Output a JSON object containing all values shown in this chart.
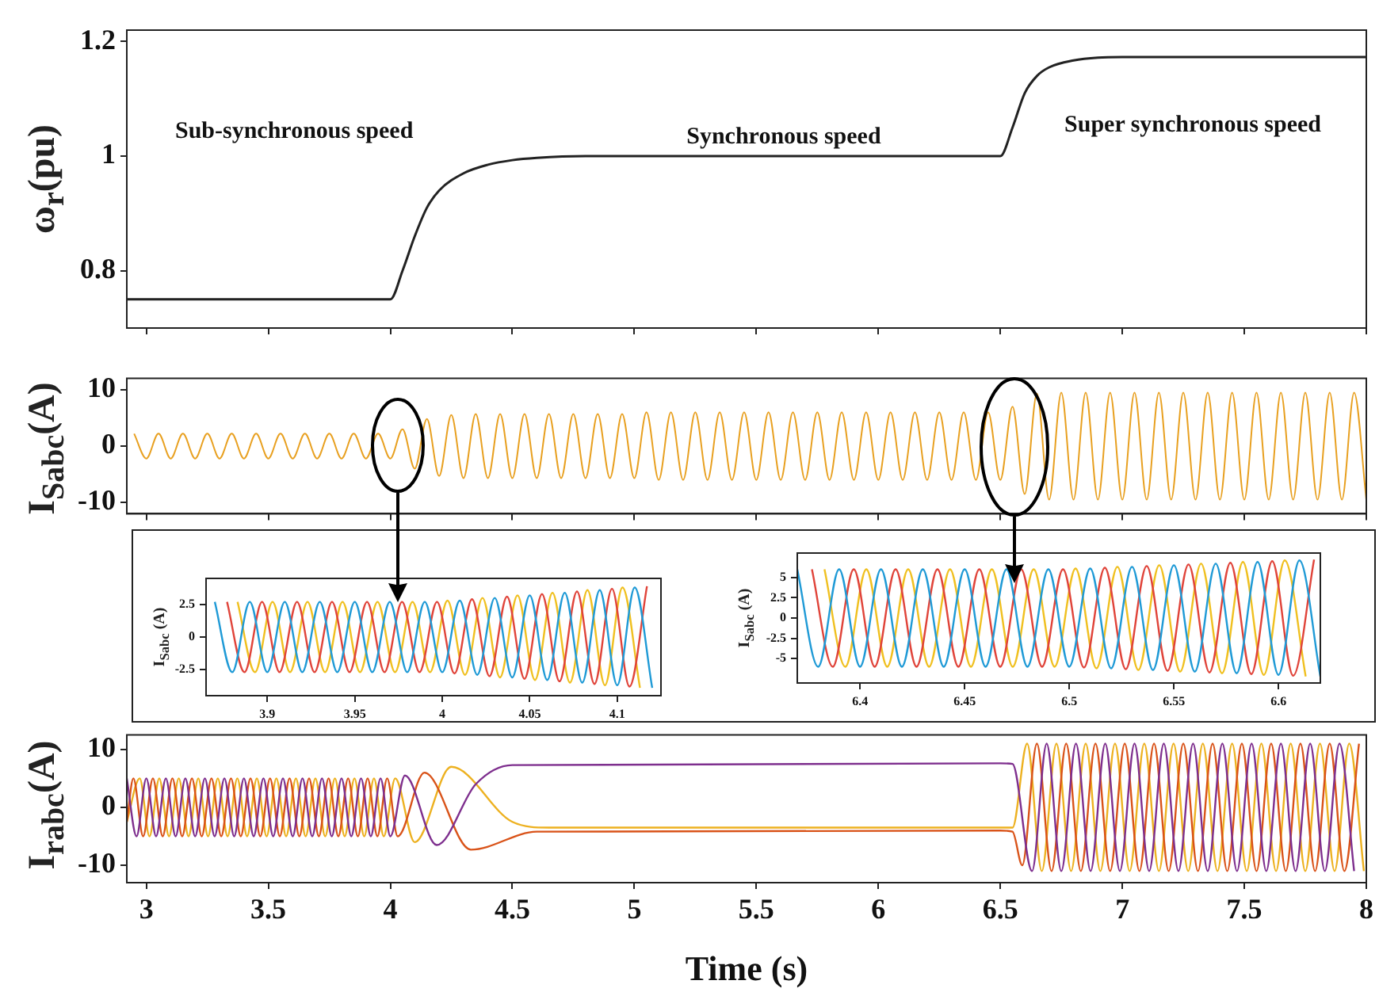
{
  "chart_data": [
    {
      "type": "line",
      "ylabel": "ω$_{r}$(pu)",
      "xlim": [
        2.92,
        8
      ],
      "xticks": [
        3,
        3.5,
        4,
        4.5,
        5,
        5.5,
        6,
        6.5,
        7,
        7.5,
        8
      ],
      "ylim": [
        0.7,
        1.22
      ],
      "yticks": [
        0.8,
        1,
        1.2
      ],
      "tick_labels": "y",
      "marker": "none",
      "annotations": [
        "Sub-synchronous speed",
        "Synchronous speed",
        "Super synchronous speed"
      ],
      "series": [
        {
          "color": "#222222",
          "x": [
            2.92,
            4.0,
            4.05,
            4.1,
            4.15,
            4.2,
            4.3,
            4.4,
            4.5,
            4.6,
            4.8,
            6.5,
            6.55,
            6.6,
            6.65,
            6.7,
            6.8,
            6.9,
            7.0,
            8.0
          ],
          "values": [
            0.75,
            0.75,
            0.8,
            0.86,
            0.91,
            0.94,
            0.97,
            0.985,
            0.993,
            0.997,
            1.0,
            1.0,
            1.05,
            1.11,
            1.14,
            1.155,
            1.167,
            1.172,
            1.173,
            1.173
          ]
        }
      ]
    },
    {
      "type": "line",
      "ylabel": "I$_{Sabc}$(A)",
      "xlim": [
        2.92,
        8
      ],
      "xticks": [
        3,
        3.5,
        4,
        4.5,
        5,
        5.5,
        6,
        6.5,
        7,
        7.5,
        8
      ],
      "ylim": [
        -12,
        12
      ],
      "yticks": [
        -10,
        0,
        10
      ],
      "tick_labels": "y",
      "marker": "none",
      "series": [
        {
          "color": "#e8a020",
          "x": [
            2.95,
            3,
            3.05,
            3.1,
            3.15,
            3.2,
            3.25,
            3.3,
            3.35,
            3.4,
            3.45,
            3.5,
            3.55,
            3.6,
            3.65,
            3.7,
            3.75,
            3.8,
            3.85,
            3.9,
            3.95,
            4,
            4.05,
            4.1,
            4.15,
            4.2,
            4.25,
            4.3,
            4.35,
            4.4,
            4.45,
            4.5,
            4.55,
            4.6,
            4.65,
            4.7,
            4.75,
            4.8,
            4.85,
            4.9,
            4.95,
            5,
            5.05,
            5.1,
            5.15,
            5.2,
            5.25,
            5.3,
            5.35,
            5.4,
            5.45,
            5.5,
            5.55,
            5.6,
            5.65,
            5.7,
            5.75,
            5.8,
            5.85,
            5.9,
            5.95,
            6,
            6.05,
            6.1,
            6.15,
            6.2,
            6.25,
            6.3,
            6.35,
            6.4,
            6.45,
            6.5,
            6.55,
            6.6,
            6.65,
            6.7,
            6.75,
            6.8,
            6.85,
            6.9,
            6.95,
            7,
            7.05,
            7.1,
            7.15,
            7.2,
            7.25,
            7.3,
            7.35,
            7.4,
            7.45,
            7.5,
            7.55,
            7.6,
            7.65,
            7.7,
            7.75,
            7.8,
            7.85,
            7.9,
            7.95,
            8
          ],
          "values": [
            2.2,
            -2.2,
            2.2,
            -2.2,
            2.2,
            -2.2,
            2.2,
            -2.2,
            2.2,
            -2.2,
            2.2,
            -2.2,
            2.2,
            -2.2,
            2.2,
            -2.2,
            2.2,
            -2.2,
            2.2,
            -2.2,
            2.2,
            -2.2,
            3,
            -4,
            4.8,
            -5.3,
            5.5,
            -5.7,
            5.7,
            -5.7,
            5.7,
            -5.7,
            5.7,
            -5.7,
            5.7,
            -5.7,
            5.7,
            -5.7,
            5.7,
            -5.7,
            5.7,
            -5.7,
            6,
            -6,
            6,
            -6,
            6,
            -6,
            6,
            -6,
            6,
            -6,
            6,
            -6,
            6,
            -6,
            6,
            -6,
            6,
            -6,
            6,
            -6,
            6,
            -6,
            6,
            -6,
            6,
            -6,
            6,
            -6,
            6,
            -6,
            7,
            -8.5,
            9.3,
            -9.5,
            9.5,
            -9.5,
            9.5,
            -9.5,
            9.5,
            -9.5,
            9.5,
            -9.5,
            9.5,
            -9.5,
            9.5,
            -9.5,
            9.5,
            -9.5,
            9.5,
            -9.5,
            9.5,
            -9.5,
            9.5,
            -9.5,
            9.5,
            -9.5,
            9.5,
            -9.5,
            9.5,
            -9.5
          ]
        }
      ]
    },
    {
      "type": "line",
      "ylabel": "I$_{Sabc}$ (A)",
      "xlim": [
        3.865,
        4.125
      ],
      "xticks": [
        3.9,
        3.95,
        4,
        4.05,
        4.1
      ],
      "ylim": [
        -4.5,
        4.5
      ],
      "yticks": [
        -2.5,
        0,
        2.5
      ],
      "marker": "none",
      "series": [
        {
          "color": "#1f9ad6",
          "x": [
            3.87,
            3.88,
            3.89,
            3.9,
            3.91,
            3.92,
            3.93,
            3.94,
            3.95,
            3.96,
            3.97,
            3.98,
            3.99,
            4,
            4.01,
            4.02,
            4.03,
            4.04,
            4.05,
            4.06,
            4.07,
            4.08,
            4.09,
            4.1,
            4.11,
            4.12
          ],
          "values": [
            2.7,
            -2.7,
            2.7,
            -2.7,
            2.7,
            -2.7,
            2.7,
            -2.7,
            2.7,
            -2.7,
            2.7,
            -2.7,
            2.7,
            -2.7,
            2.8,
            -2.9,
            3,
            -3.1,
            3.2,
            -3.3,
            3.4,
            -3.5,
            3.6,
            -3.7,
            3.8,
            -3.9
          ]
        },
        {
          "color": "#e0443a",
          "x": [
            3.877,
            3.887,
            3.897,
            3.907,
            3.917,
            3.927,
            3.937,
            3.947,
            3.957,
            3.967,
            3.977,
            3.987,
            3.997,
            4.007,
            4.017,
            4.027,
            4.037,
            4.047,
            4.057,
            4.067,
            4.077,
            4.087,
            4.097,
            4.107,
            4.117
          ],
          "values": [
            2.7,
            -2.7,
            2.7,
            -2.7,
            2.7,
            -2.7,
            2.7,
            -2.7,
            2.7,
            -2.7,
            2.7,
            -2.7,
            2.7,
            -2.8,
            2.9,
            -3,
            3.1,
            -3.2,
            3.3,
            -3.4,
            3.5,
            -3.6,
            3.7,
            -3.8,
            3.9
          ]
        },
        {
          "color": "#f0c020",
          "x": [
            3.883,
            3.893,
            3.903,
            3.913,
            3.923,
            3.933,
            3.943,
            3.953,
            3.963,
            3.973,
            3.983,
            3.993,
            4.003,
            4.013,
            4.023,
            4.033,
            4.043,
            4.053,
            4.063,
            4.073,
            4.083,
            4.093,
            4.103,
            4.113
          ],
          "values": [
            2.7,
            -2.7,
            2.7,
            -2.7,
            2.7,
            -2.7,
            2.7,
            -2.7,
            2.7,
            -2.7,
            2.7,
            -2.7,
            2.8,
            -2.9,
            3,
            -3.1,
            3.2,
            -3.3,
            3.4,
            -3.5,
            3.6,
            -3.7,
            3.8,
            -3.9
          ]
        }
      ]
    },
    {
      "type": "line",
      "ylabel": "I$_{Sabc}$ (A)",
      "xlim": [
        6.37,
        6.62
      ],
      "xticks": [
        6.4,
        6.45,
        6.5,
        6.55,
        6.6
      ],
      "ylim": [
        -8,
        8
      ],
      "yticks": [
        -5,
        -2.5,
        0,
        2.5,
        5
      ],
      "marker": "none",
      "series": [
        {
          "color": "#1f9ad6",
          "x": [
            6.37,
            6.38,
            6.39,
            6.4,
            6.41,
            6.42,
            6.43,
            6.44,
            6.45,
            6.46,
            6.47,
            6.48,
            6.49,
            6.5,
            6.51,
            6.52,
            6.53,
            6.54,
            6.55,
            6.56,
            6.57,
            6.58,
            6.59,
            6.6,
            6.61,
            6.62
          ],
          "values": [
            6,
            -6,
            6,
            -6,
            6,
            -6,
            6,
            -6,
            6,
            -6,
            6,
            -6,
            6,
            -6,
            6.1,
            -6.2,
            6.3,
            -6.4,
            6.5,
            -6.6,
            6.7,
            -6.8,
            6.9,
            -7,
            7.1,
            -7.2
          ]
        },
        {
          "color": "#e0443a",
          "x": [
            6.377,
            6.387,
            6.397,
            6.407,
            6.417,
            6.427,
            6.437,
            6.447,
            6.457,
            6.467,
            6.477,
            6.487,
            6.497,
            6.507,
            6.517,
            6.527,
            6.537,
            6.547,
            6.557,
            6.567,
            6.577,
            6.587,
            6.597,
            6.607,
            6.617
          ],
          "values": [
            6,
            -6,
            6,
            -6,
            6,
            -6,
            6,
            -6,
            6,
            -6,
            6,
            -6,
            6,
            -6.1,
            6.2,
            -6.3,
            6.4,
            -6.5,
            6.6,
            -6.7,
            6.8,
            -6.9,
            7,
            -7.1,
            7.2
          ]
        },
        {
          "color": "#f0c020",
          "x": [
            6.383,
            6.393,
            6.403,
            6.413,
            6.423,
            6.433,
            6.443,
            6.453,
            6.463,
            6.473,
            6.483,
            6.493,
            6.503,
            6.513,
            6.523,
            6.533,
            6.543,
            6.553,
            6.563,
            6.573,
            6.583,
            6.593,
            6.603,
            6.613
          ],
          "values": [
            6,
            -6,
            6,
            -6,
            6,
            -6,
            6,
            -6,
            6,
            -6,
            6,
            -6,
            6.1,
            -6.2,
            6.3,
            -6.4,
            6.5,
            -6.6,
            6.7,
            -6.8,
            6.9,
            -7,
            7.1,
            -7.2
          ]
        }
      ]
    },
    {
      "type": "line",
      "ylabel": "I$_{rabc}$(A)",
      "xlabel": "Time (s)",
      "xlim": [
        2.92,
        8
      ],
      "xticks": [
        3,
        3.5,
        4,
        4.5,
        5,
        5.5,
        6,
        6.5,
        7,
        7.5,
        8
      ],
      "ylim": [
        -13,
        12.5
      ],
      "yticks": [
        -10,
        0,
        10
      ],
      "marker": "none",
      "series": [
        {
          "color": "#7e2f8e",
          "x": [
            2.92,
            2.96,
            3,
            3.04,
            3.08,
            3.12,
            3.16,
            3.2,
            3.24,
            3.28,
            3.32,
            3.36,
            3.4,
            3.44,
            3.48,
            3.52,
            3.56,
            3.6,
            3.64,
            3.68,
            3.72,
            3.76,
            3.8,
            3.84,
            3.88,
            3.92,
            3.96,
            4,
            4.06,
            4.19,
            4.35,
            4.5,
            6.5,
            6.55,
            6.63,
            6.69,
            6.75,
            6.81,
            6.87,
            6.93,
            6.99,
            7.05,
            7.11,
            7.17,
            7.23,
            7.29,
            7.35,
            7.41,
            7.47,
            7.53,
            7.59,
            7.65,
            7.71,
            7.77,
            7.83,
            7.89,
            7.95
          ],
          "values": [
            5,
            -5,
            5,
            -5,
            5,
            -5,
            5,
            -5,
            5,
            -5,
            5,
            -5,
            5,
            -5,
            5,
            -5,
            5,
            -5,
            5,
            -5,
            5,
            -5,
            5,
            -5,
            5,
            -5,
            5,
            -5,
            5.5,
            -6.5,
            4,
            7.3,
            7.6,
            7.5,
            -11,
            11,
            -11,
            11,
            -11,
            11,
            -11,
            11,
            -11,
            11,
            -11,
            11,
            -11,
            11,
            -11,
            11,
            -11,
            11,
            -11,
            11,
            -11,
            11,
            -11
          ]
        },
        {
          "color": "#d95319",
          "x": [
            2.92,
            2.947,
            2.987,
            3.027,
            3.067,
            3.107,
            3.147,
            3.187,
            3.227,
            3.267,
            3.307,
            3.347,
            3.387,
            3.427,
            3.467,
            3.507,
            3.547,
            3.587,
            3.627,
            3.667,
            3.707,
            3.747,
            3.787,
            3.827,
            3.867,
            3.907,
            3.947,
            3.987,
            4.03,
            4.14,
            4.33,
            4.6,
            6.5,
            6.55,
            6.59,
            6.65,
            6.71,
            6.77,
            6.83,
            6.89,
            6.95,
            7.01,
            7.07,
            7.13,
            7.19,
            7.25,
            7.31,
            7.37,
            7.43,
            7.49,
            7.55,
            7.61,
            7.67,
            7.73,
            7.79,
            7.85,
            7.91,
            7.97
          ],
          "values": [
            -2.5,
            5,
            -5,
            5,
            -5,
            5,
            -5,
            5,
            -5,
            5,
            -5,
            5,
            -5,
            5,
            -5,
            5,
            -5,
            5,
            -5,
            5,
            -5,
            5,
            -5,
            5,
            -5,
            5,
            -5,
            5,
            -5,
            6,
            -7.3,
            -4.2,
            -4,
            -4.2,
            -10,
            11,
            -11,
            11,
            -11,
            11,
            -11,
            11,
            -11,
            11,
            -11,
            11,
            -11,
            11,
            -11,
            11,
            -11,
            11,
            -11,
            11,
            -11,
            11,
            -11,
            11
          ]
        },
        {
          "color": "#edb120",
          "x": [
            2.92,
            2.973,
            3.013,
            3.053,
            3.093,
            3.133,
            3.173,
            3.213,
            3.253,
            3.293,
            3.333,
            3.373,
            3.413,
            3.453,
            3.493,
            3.533,
            3.573,
            3.613,
            3.653,
            3.693,
            3.733,
            3.773,
            3.813,
            3.853,
            3.893,
            3.933,
            3.973,
            4.02,
            4.1,
            4.25,
            4.5,
            4.65,
            6.5,
            6.55,
            6.61,
            6.67,
            6.73,
            6.79,
            6.85,
            6.91,
            6.97,
            7.03,
            7.09,
            7.15,
            7.21,
            7.27,
            7.33,
            7.39,
            7.45,
            7.51,
            7.57,
            7.63,
            7.69,
            7.75,
            7.81,
            7.87,
            7.93,
            7.99
          ],
          "values": [
            -2.5,
            5,
            -5,
            5,
            -5,
            5,
            -5,
            5,
            -5,
            5,
            -5,
            5,
            -5,
            5,
            -5,
            5,
            -5,
            5,
            -5,
            5,
            -5,
            5,
            -5,
            5,
            -5,
            5,
            -5,
            5,
            -6,
            7,
            -2.5,
            -3.5,
            -3.5,
            -3.5,
            11,
            -11,
            11,
            -11,
            11,
            -11,
            11,
            -11,
            11,
            -11,
            11,
            -11,
            11,
            -11,
            11,
            -11,
            11,
            -11,
            11,
            -11,
            11,
            -11,
            11,
            -11
          ]
        }
      ]
    }
  ]
}
